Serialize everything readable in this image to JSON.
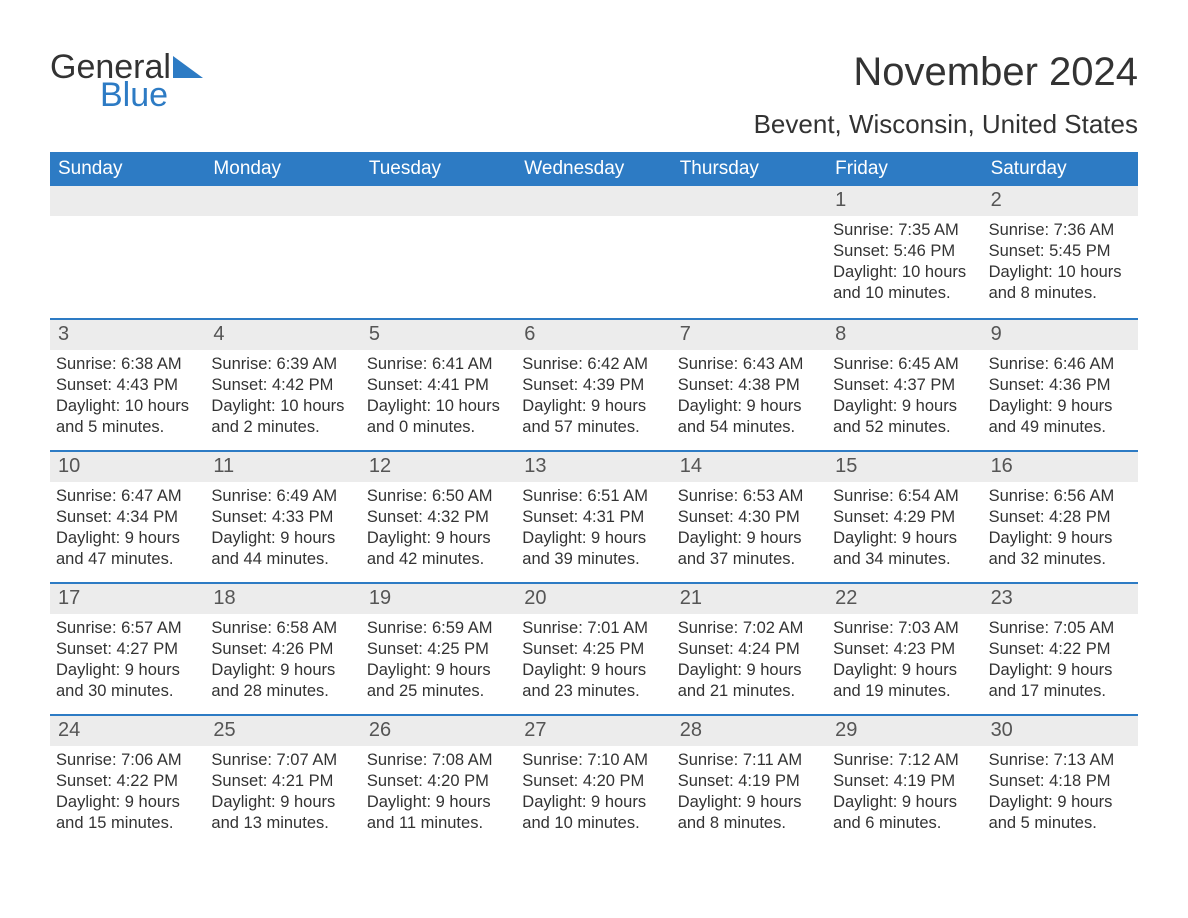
{
  "brand": {
    "part1": "General",
    "part2": "Blue",
    "triangle_color": "#2d7bc4"
  },
  "title": "November 2024",
  "location": "Bevent, Wisconsin, United States",
  "colors": {
    "header_bg": "#2d7bc4",
    "header_text": "#ffffff",
    "row_divider": "#2d7bc4",
    "daynum_bg": "#ececec",
    "text": "#333333",
    "bg": "#ffffff"
  },
  "day_of_week": [
    "Sunday",
    "Monday",
    "Tuesday",
    "Wednesday",
    "Thursday",
    "Friday",
    "Saturday"
  ],
  "font": {
    "family": "Arial",
    "title_size": 40,
    "location_size": 26,
    "dow_size": 19,
    "body_size": 16.5
  },
  "weeks": [
    [
      {
        "blank": true
      },
      {
        "blank": true
      },
      {
        "blank": true
      },
      {
        "blank": true
      },
      {
        "blank": true
      },
      {
        "n": "1",
        "sunrise": "Sunrise: 7:35 AM",
        "sunset": "Sunset: 5:46 PM",
        "daylight": "Daylight: 10 hours and 10 minutes."
      },
      {
        "n": "2",
        "sunrise": "Sunrise: 7:36 AM",
        "sunset": "Sunset: 5:45 PM",
        "daylight": "Daylight: 10 hours and 8 minutes."
      }
    ],
    [
      {
        "n": "3",
        "sunrise": "Sunrise: 6:38 AM",
        "sunset": "Sunset: 4:43 PM",
        "daylight": "Daylight: 10 hours and 5 minutes."
      },
      {
        "n": "4",
        "sunrise": "Sunrise: 6:39 AM",
        "sunset": "Sunset: 4:42 PM",
        "daylight": "Daylight: 10 hours and 2 minutes."
      },
      {
        "n": "5",
        "sunrise": "Sunrise: 6:41 AM",
        "sunset": "Sunset: 4:41 PM",
        "daylight": "Daylight: 10 hours and 0 minutes."
      },
      {
        "n": "6",
        "sunrise": "Sunrise: 6:42 AM",
        "sunset": "Sunset: 4:39 PM",
        "daylight": "Daylight: 9 hours and 57 minutes."
      },
      {
        "n": "7",
        "sunrise": "Sunrise: 6:43 AM",
        "sunset": "Sunset: 4:38 PM",
        "daylight": "Daylight: 9 hours and 54 minutes."
      },
      {
        "n": "8",
        "sunrise": "Sunrise: 6:45 AM",
        "sunset": "Sunset: 4:37 PM",
        "daylight": "Daylight: 9 hours and 52 minutes."
      },
      {
        "n": "9",
        "sunrise": "Sunrise: 6:46 AM",
        "sunset": "Sunset: 4:36 PM",
        "daylight": "Daylight: 9 hours and 49 minutes."
      }
    ],
    [
      {
        "n": "10",
        "sunrise": "Sunrise: 6:47 AM",
        "sunset": "Sunset: 4:34 PM",
        "daylight": "Daylight: 9 hours and 47 minutes."
      },
      {
        "n": "11",
        "sunrise": "Sunrise: 6:49 AM",
        "sunset": "Sunset: 4:33 PM",
        "daylight": "Daylight: 9 hours and 44 minutes."
      },
      {
        "n": "12",
        "sunrise": "Sunrise: 6:50 AM",
        "sunset": "Sunset: 4:32 PM",
        "daylight": "Daylight: 9 hours and 42 minutes."
      },
      {
        "n": "13",
        "sunrise": "Sunrise: 6:51 AM",
        "sunset": "Sunset: 4:31 PM",
        "daylight": "Daylight: 9 hours and 39 minutes."
      },
      {
        "n": "14",
        "sunrise": "Sunrise: 6:53 AM",
        "sunset": "Sunset: 4:30 PM",
        "daylight": "Daylight: 9 hours and 37 minutes."
      },
      {
        "n": "15",
        "sunrise": "Sunrise: 6:54 AM",
        "sunset": "Sunset: 4:29 PM",
        "daylight": "Daylight: 9 hours and 34 minutes."
      },
      {
        "n": "16",
        "sunrise": "Sunrise: 6:56 AM",
        "sunset": "Sunset: 4:28 PM",
        "daylight": "Daylight: 9 hours and 32 minutes."
      }
    ],
    [
      {
        "n": "17",
        "sunrise": "Sunrise: 6:57 AM",
        "sunset": "Sunset: 4:27 PM",
        "daylight": "Daylight: 9 hours and 30 minutes."
      },
      {
        "n": "18",
        "sunrise": "Sunrise: 6:58 AM",
        "sunset": "Sunset: 4:26 PM",
        "daylight": "Daylight: 9 hours and 28 minutes."
      },
      {
        "n": "19",
        "sunrise": "Sunrise: 6:59 AM",
        "sunset": "Sunset: 4:25 PM",
        "daylight": "Daylight: 9 hours and 25 minutes."
      },
      {
        "n": "20",
        "sunrise": "Sunrise: 7:01 AM",
        "sunset": "Sunset: 4:25 PM",
        "daylight": "Daylight: 9 hours and 23 minutes."
      },
      {
        "n": "21",
        "sunrise": "Sunrise: 7:02 AM",
        "sunset": "Sunset: 4:24 PM",
        "daylight": "Daylight: 9 hours and 21 minutes."
      },
      {
        "n": "22",
        "sunrise": "Sunrise: 7:03 AM",
        "sunset": "Sunset: 4:23 PM",
        "daylight": "Daylight: 9 hours and 19 minutes."
      },
      {
        "n": "23",
        "sunrise": "Sunrise: 7:05 AM",
        "sunset": "Sunset: 4:22 PM",
        "daylight": "Daylight: 9 hours and 17 minutes."
      }
    ],
    [
      {
        "n": "24",
        "sunrise": "Sunrise: 7:06 AM",
        "sunset": "Sunset: 4:22 PM",
        "daylight": "Daylight: 9 hours and 15 minutes."
      },
      {
        "n": "25",
        "sunrise": "Sunrise: 7:07 AM",
        "sunset": "Sunset: 4:21 PM",
        "daylight": "Daylight: 9 hours and 13 minutes."
      },
      {
        "n": "26",
        "sunrise": "Sunrise: 7:08 AM",
        "sunset": "Sunset: 4:20 PM",
        "daylight": "Daylight: 9 hours and 11 minutes."
      },
      {
        "n": "27",
        "sunrise": "Sunrise: 7:10 AM",
        "sunset": "Sunset: 4:20 PM",
        "daylight": "Daylight: 9 hours and 10 minutes."
      },
      {
        "n": "28",
        "sunrise": "Sunrise: 7:11 AM",
        "sunset": "Sunset: 4:19 PM",
        "daylight": "Daylight: 9 hours and 8 minutes."
      },
      {
        "n": "29",
        "sunrise": "Sunrise: 7:12 AM",
        "sunset": "Sunset: 4:19 PM",
        "daylight": "Daylight: 9 hours and 6 minutes."
      },
      {
        "n": "30",
        "sunrise": "Sunrise: 7:13 AM",
        "sunset": "Sunset: 4:18 PM",
        "daylight": "Daylight: 9 hours and 5 minutes."
      }
    ]
  ]
}
